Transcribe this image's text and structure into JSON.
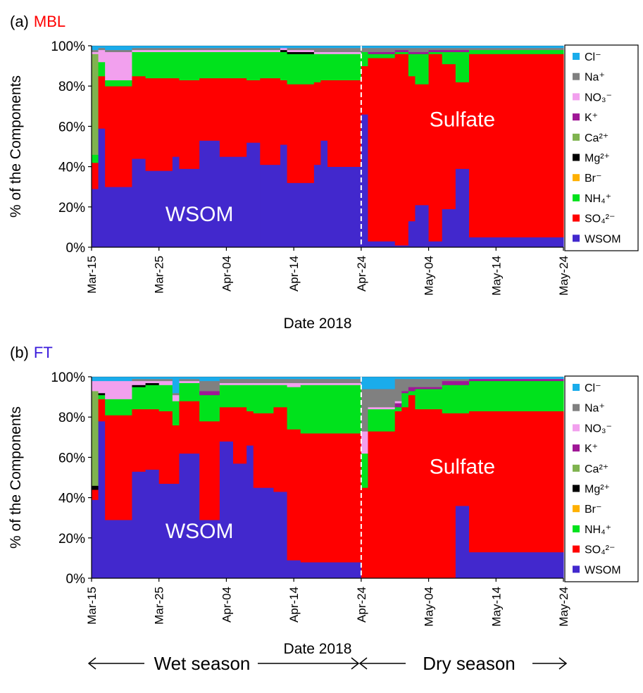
{
  "colors": {
    "Cl": "#1AACEB",
    "Na": "#808080",
    "NO3": "#F2A0EE",
    "K": "#9F1796",
    "Ca": "#7FB34F",
    "Mg": "#000000",
    "Br": "#FFB000",
    "NH4": "#00E21C",
    "SO4": "#FF0000",
    "WSOM": "#4228CD",
    "panel_a_tag": "#FF0000",
    "panel_b_tag": "#3A1BDB"
  },
  "footer": {
    "wet_label": "Wet season",
    "dry_label": "Dry season"
  },
  "chart_data": [
    {
      "type": "stacked-bar",
      "panel": "(a)",
      "title": "MBL",
      "xlabel": "Date 2018",
      "ylabel": "% of the Components",
      "ylim": [
        0,
        100
      ],
      "yticks": [
        "0%",
        "20%",
        "40%",
        "60%",
        "80%",
        "100%"
      ],
      "xticks": [
        "Mar-15",
        "Mar-25",
        "Apr-04",
        "Apr-14",
        "Apr-24",
        "May-04",
        "May-14",
        "May-24"
      ],
      "xrange_days": [
        0,
        70
      ],
      "divider_day": 40,
      "legend": [
        "Cl⁻",
        "Na⁺",
        "NO₃⁻",
        "K⁺",
        "Ca²⁺",
        "Mg²⁺",
        "Br⁻",
        "NH₄⁺",
        "SO₄²⁻",
        "WSOM"
      ],
      "annotations": [
        {
          "text": "WSOM",
          "day": 16,
          "y": 13
        },
        {
          "text": "Sulfate",
          "day": 55,
          "y": 60
        }
      ],
      "bars": [
        {
          "start": 0,
          "end": 1,
          "WSOM": 29,
          "SO4": 13,
          "NH4": 4,
          "Ca": 50,
          "NO3": 1,
          "Na": 1,
          "Cl": 2
        },
        {
          "start": 1,
          "end": 2,
          "WSOM": 59,
          "SO4": 26,
          "NH4": 7,
          "NO3": 6,
          "Na": 1,
          "Cl": 1
        },
        {
          "start": 2,
          "end": 6,
          "WSOM": 30,
          "SO4": 50,
          "NH4": 3,
          "NO3": 14,
          "Na": 1,
          "Cl": 2
        },
        {
          "start": 6,
          "end": 8,
          "WSOM": 44,
          "SO4": 41,
          "NH4": 12,
          "NO3": 1,
          "Na": 1,
          "Cl": 1
        },
        {
          "start": 8,
          "end": 12,
          "WSOM": 38,
          "SO4": 46,
          "NH4": 13,
          "NO3": 1,
          "Na": 1,
          "Cl": 1
        },
        {
          "start": 12,
          "end": 13,
          "WSOM": 45,
          "SO4": 39,
          "NH4": 13,
          "NO3": 1,
          "Na": 1,
          "Cl": 1
        },
        {
          "start": 13,
          "end": 16,
          "WSOM": 39,
          "SO4": 44,
          "NH4": 14,
          "NO3": 1,
          "Na": 1,
          "Cl": 1
        },
        {
          "start": 16,
          "end": 19,
          "WSOM": 53,
          "SO4": 31,
          "NH4": 13,
          "NO3": 1,
          "Na": 1,
          "Cl": 1
        },
        {
          "start": 19,
          "end": 23,
          "WSOM": 45,
          "SO4": 39,
          "NH4": 13,
          "NO3": 1,
          "Na": 1,
          "Cl": 1
        },
        {
          "start": 23,
          "end": 25,
          "WSOM": 52,
          "SO4": 31,
          "NH4": 14,
          "NO3": 1,
          "Na": 1,
          "Cl": 1
        },
        {
          "start": 25,
          "end": 28,
          "WSOM": 41,
          "SO4": 43,
          "NH4": 13,
          "NO3": 1,
          "Na": 1,
          "Cl": 1
        },
        {
          "start": 28,
          "end": 29,
          "WSOM": 51,
          "SO4": 32,
          "NH4": 14,
          "Mg": 1,
          "NO3": 1,
          "Cl": 1
        },
        {
          "start": 29,
          "end": 33,
          "WSOM": 32,
          "SO4": 49,
          "NH4": 15,
          "Mg": 1,
          "NO3": 1,
          "Na": 1,
          "Cl": 1
        },
        {
          "start": 33,
          "end": 34,
          "WSOM": 41,
          "SO4": 41,
          "NH4": 14,
          "NO3": 1,
          "Na": 2,
          "Cl": 1
        },
        {
          "start": 34,
          "end": 35,
          "WSOM": 53,
          "SO4": 30,
          "NH4": 13,
          "NO3": 1,
          "Na": 2,
          "Cl": 1
        },
        {
          "start": 35,
          "end": 40,
          "WSOM": 40,
          "SO4": 43,
          "NH4": 13,
          "NO3": 1,
          "Na": 2,
          "Cl": 1
        },
        {
          "start": 40,
          "end": 41,
          "WSOM": 66,
          "SO4": 24,
          "NH4": 7,
          "Na": 2,
          "Cl": 1
        },
        {
          "start": 41,
          "end": 45,
          "WSOM": 3,
          "SO4": 91,
          "NH4": 2,
          "K": 1,
          "Na": 2,
          "Cl": 1
        },
        {
          "start": 45,
          "end": 47,
          "WSOM": 1,
          "SO4": 95,
          "NH4": 1,
          "K": 1,
          "Na": 1,
          "Cl": 1
        },
        {
          "start": 47,
          "end": 48,
          "WSOM": 13,
          "SO4": 72,
          "NH4": 11,
          "K": 1,
          "Na": 2,
          "Cl": 1
        },
        {
          "start": 48,
          "end": 50,
          "WSOM": 21,
          "SO4": 60,
          "NH4": 15,
          "K": 1,
          "Na": 2,
          "Cl": 1
        },
        {
          "start": 50,
          "end": 52,
          "WSOM": 3,
          "SO4": 93,
          "NH4": 1,
          "K": 1,
          "Na": 1,
          "Cl": 1
        },
        {
          "start": 52,
          "end": 54,
          "WSOM": 19,
          "SO4": 72,
          "NH4": 6,
          "K": 1,
          "Na": 1,
          "Cl": 1
        },
        {
          "start": 54,
          "end": 56,
          "WSOM": 39,
          "SO4": 43,
          "NH4": 15,
          "K": 1,
          "Na": 1,
          "Cl": 1
        },
        {
          "start": 56,
          "end": 70,
          "WSOM": 5,
          "SO4": 91,
          "NH4": 2,
          "Na": 1,
          "Cl": 1
        }
      ]
    },
    {
      "type": "stacked-bar",
      "panel": "(b)",
      "title": "FT",
      "xlabel": "Date 2018",
      "ylabel": "% of the Components",
      "ylim": [
        0,
        100
      ],
      "yticks": [
        "0%",
        "20%",
        "40%",
        "60%",
        "80%",
        "100%"
      ],
      "xticks": [
        "Mar-15",
        "Mar-25",
        "Apr-04",
        "Apr-14",
        "Apr-24",
        "May-04",
        "May-14",
        "May-24"
      ],
      "xrange_days": [
        0,
        70
      ],
      "divider_day": 40,
      "legend": [
        "Cl⁻",
        "Na⁺",
        "NO₃⁻",
        "K⁺",
        "Ca²⁺",
        "Mg²⁺",
        "Br⁻",
        "NH₄⁺",
        "SO₄²⁻",
        "WSOM"
      ],
      "annotations": [
        {
          "text": "WSOM",
          "day": 16,
          "y": 20
        },
        {
          "text": "Sulfate",
          "day": 55,
          "y": 52
        }
      ],
      "bars": [
        {
          "start": 0,
          "end": 1,
          "WSOM": 39,
          "SO4": 5,
          "Ca": 47,
          "Mg": 2,
          "NO3": 5,
          "Cl": 2
        },
        {
          "start": 1,
          "end": 2,
          "WSOM": 78,
          "SO4": 11,
          "NH4": 2,
          "Mg": 1,
          "NO3": 6,
          "Cl": 2
        },
        {
          "start": 2,
          "end": 6,
          "WSOM": 29,
          "SO4": 52,
          "NH4": 8,
          "NO3": 9,
          "Cl": 2
        },
        {
          "start": 6,
          "end": 8,
          "WSOM": 53,
          "SO4": 31,
          "NH4": 11,
          "Mg": 1,
          "NO3": 2,
          "Na": 1,
          "Cl": 1
        },
        {
          "start": 8,
          "end": 10,
          "WSOM": 54,
          "SO4": 30,
          "NH4": 12,
          "Mg": 1,
          "NO3": 1,
          "Na": 1,
          "Cl": 1
        },
        {
          "start": 10,
          "end": 12,
          "WSOM": 47,
          "SO4": 36,
          "NH4": 13,
          "NO3": 2,
          "Na": 1,
          "Cl": 1
        },
        {
          "start": 12,
          "end": 13,
          "WSOM": 47,
          "SO4": 29,
          "NH4": 12,
          "NO3": 3,
          "Na": 1,
          "Cl": 8
        },
        {
          "start": 13,
          "end": 16,
          "WSOM": 62,
          "SO4": 26,
          "NH4": 9,
          "NO3": 1,
          "Na": 1,
          "Cl": 1
        },
        {
          "start": 16,
          "end": 19,
          "WSOM": 29,
          "SO4": 49,
          "NH4": 13,
          "K": 2,
          "Na": 5,
          "Cl": 2
        },
        {
          "start": 19,
          "end": 21,
          "WSOM": 68,
          "SO4": 17,
          "NH4": 11,
          "NO3": 1,
          "Na": 2,
          "Cl": 1
        },
        {
          "start": 21,
          "end": 23,
          "WSOM": 57,
          "SO4": 28,
          "NH4": 11,
          "NO3": 1,
          "Na": 2,
          "Cl": 1
        },
        {
          "start": 23,
          "end": 24,
          "WSOM": 66,
          "SO4": 17,
          "NH4": 13,
          "NO3": 1,
          "Na": 2,
          "Cl": 1
        },
        {
          "start": 24,
          "end": 27,
          "WSOM": 45,
          "SO4": 37,
          "NH4": 14,
          "NO3": 1,
          "Na": 2,
          "Cl": 1
        },
        {
          "start": 27,
          "end": 29,
          "WSOM": 43,
          "SO4": 42,
          "NH4": 11,
          "NO3": 1,
          "Na": 2,
          "Cl": 1
        },
        {
          "start": 29,
          "end": 31,
          "WSOM": 9,
          "SO4": 65,
          "NH4": 21,
          "NO3": 2,
          "Na": 2,
          "Cl": 1
        },
        {
          "start": 31,
          "end": 40,
          "WSOM": 8,
          "SO4": 64,
          "NH4": 24,
          "NO3": 1,
          "Na": 2,
          "Cl": 1
        },
        {
          "start": 40,
          "end": 41,
          "SO4": 45,
          "NH4": 17,
          "NO3": 11,
          "Na": 21,
          "Cl": 6
        },
        {
          "start": 41,
          "end": 45,
          "SO4": 73,
          "NH4": 11,
          "NO3": 1,
          "Na": 9,
          "Cl": 6
        },
        {
          "start": 45,
          "end": 46,
          "SO4": 83,
          "NH4": 2,
          "NO3": 1,
          "K": 2,
          "Na": 11,
          "Cl": 1
        },
        {
          "start": 46,
          "end": 47,
          "SO4": 85,
          "NH4": 7,
          "K": 1,
          "Na": 6,
          "Cl": 1
        },
        {
          "start": 47,
          "end": 48,
          "SO4": 91,
          "NH4": 2,
          "K": 2,
          "Na": 4,
          "Cl": 1
        },
        {
          "start": 48,
          "end": 52,
          "SO4": 84,
          "NH4": 10,
          "K": 1,
          "Na": 4,
          "Cl": 1
        },
        {
          "start": 52,
          "end": 54,
          "SO4": 82,
          "NH4": 14,
          "K": 2,
          "Na": 1,
          "Cl": 1
        },
        {
          "start": 54,
          "end": 56,
          "WSOM": 36,
          "SO4": 46,
          "NH4": 14,
          "K": 2,
          "Na": 1,
          "Cl": 1
        },
        {
          "start": 56,
          "end": 70,
          "WSOM": 13,
          "SO4": 70,
          "NH4": 15,
          "K": 1,
          "Cl": 1
        }
      ]
    }
  ]
}
